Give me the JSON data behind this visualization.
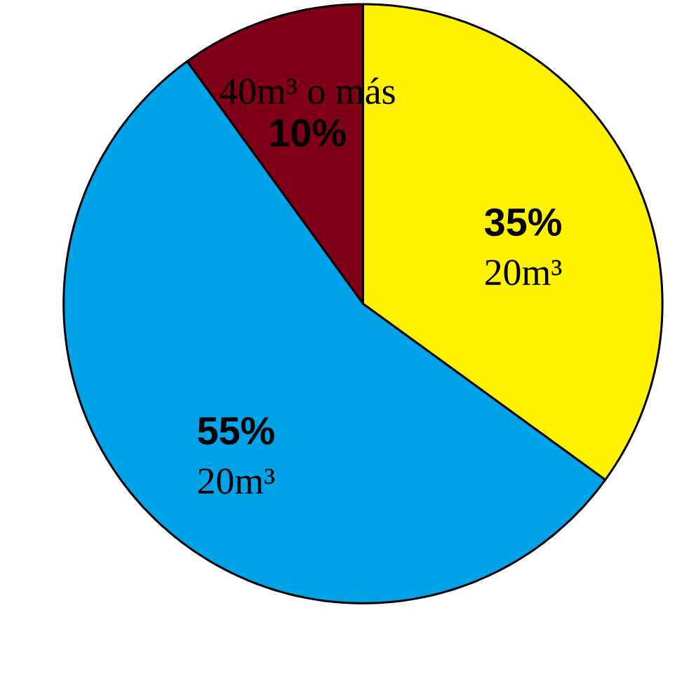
{
  "chart_data": {
    "type": "pie",
    "categories": [
      "40m³ o más",
      "20m³",
      "20m³"
    ],
    "values": [
      10,
      35,
      55
    ],
    "colors": [
      "#800018",
      "#fff200",
      "#00a2e8"
    ],
    "value_labels": [
      "10%",
      "35%",
      "55%"
    ]
  }
}
